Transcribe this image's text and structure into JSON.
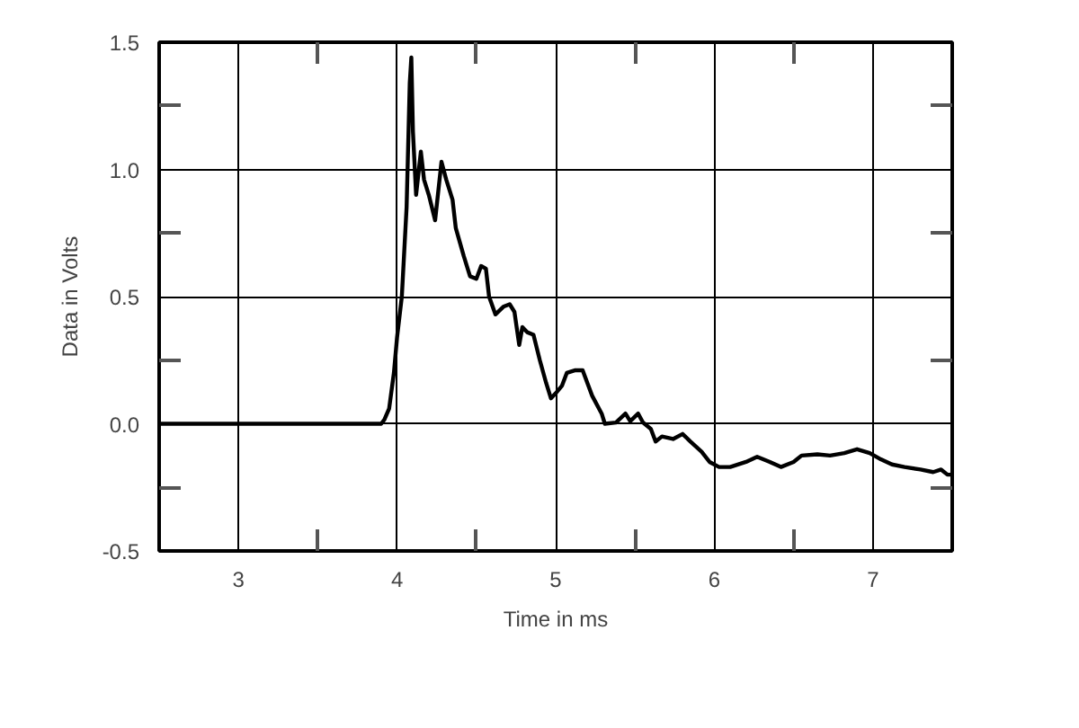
{
  "chart_data": {
    "type": "line",
    "xlabel": "Time in ms",
    "ylabel": "Data in Volts",
    "x": [
      2.5,
      3.9,
      3.92,
      3.95,
      3.98,
      4.0,
      4.03,
      4.06,
      4.08,
      4.09,
      4.1,
      4.12,
      4.15,
      4.17,
      4.2,
      4.24,
      4.28,
      4.31,
      4.35,
      4.37,
      4.42,
      4.46,
      4.5,
      4.53,
      4.56,
      4.58,
      4.62,
      4.67,
      4.71,
      4.74,
      4.77,
      4.79,
      4.82,
      4.86,
      4.9,
      4.94,
      4.97,
      5.0,
      5.04,
      5.07,
      5.12,
      5.17,
      5.2,
      5.23,
      5.29,
      5.31,
      5.38,
      5.44,
      5.47,
      5.52,
      5.55,
      5.6,
      5.63,
      5.67,
      5.74,
      5.8,
      5.85,
      5.92,
      5.97,
      6.03,
      6.1,
      6.2,
      6.27,
      6.35,
      6.42,
      6.5,
      6.55,
      6.65,
      6.73,
      6.82,
      6.9,
      6.98,
      7.05,
      7.12,
      7.2,
      7.3,
      7.38,
      7.43,
      7.47,
      7.5
    ],
    "series": [
      {
        "color": "#000000",
        "values": [
          0,
          0,
          0.016,
          0.06,
          0.2,
          0.34,
          0.5,
          0.85,
          1.34,
          1.44,
          1.15,
          0.9,
          1.07,
          0.96,
          0.9,
          0.8,
          1.03,
          0.96,
          0.88,
          0.77,
          0.66,
          0.58,
          0.57,
          0.62,
          0.61,
          0.5,
          0.43,
          0.46,
          0.47,
          0.44,
          0.31,
          0.38,
          0.36,
          0.35,
          0.25,
          0.16,
          0.1,
          0.12,
          0.15,
          0.2,
          0.21,
          0.21,
          0.16,
          0.11,
          0.04,
          0.0,
          0.005,
          0.04,
          0.01,
          0.04,
          0.005,
          -0.02,
          -0.07,
          -0.05,
          -0.06,
          -0.04,
          -0.07,
          -0.11,
          -0.15,
          -0.17,
          -0.17,
          -0.15,
          -0.13,
          -0.15,
          -0.17,
          -0.15,
          -0.125,
          -0.12,
          -0.125,
          -0.115,
          -0.1,
          -0.115,
          -0.14,
          -0.16,
          -0.17,
          -0.18,
          -0.19,
          -0.18,
          -0.2,
          -0.2
        ]
      }
    ],
    "xlim": [
      2.5,
      7.5
    ],
    "xticks": [
      3,
      {
        "value": 3.5,
        "label": null
      },
      4,
      {
        "value": 4.5,
        "label": null
      },
      5,
      {
        "value": 5.5,
        "label": null
      },
      6,
      {
        "value": 6.5,
        "label": null
      },
      7
    ],
    "ylim": [
      -0.5,
      1.5
    ],
    "yticks": [
      {
        "value": -0.5,
        "label": "-0.5"
      },
      {
        "value": -0.25,
        "label": null
      },
      {
        "value": 0,
        "label": "0.0"
      },
      {
        "value": 0.25,
        "label": null
      },
      {
        "value": 0.5,
        "label": "0.5"
      },
      {
        "value": 0.75,
        "label": null
      },
      {
        "value": 1,
        "label": "1.0"
      },
      {
        "value": 1.25,
        "label": null
      },
      {
        "value": 1.5,
        "label": "1.5"
      }
    ],
    "grid": true,
    "line_style": "solid",
    "marker": "none"
  }
}
